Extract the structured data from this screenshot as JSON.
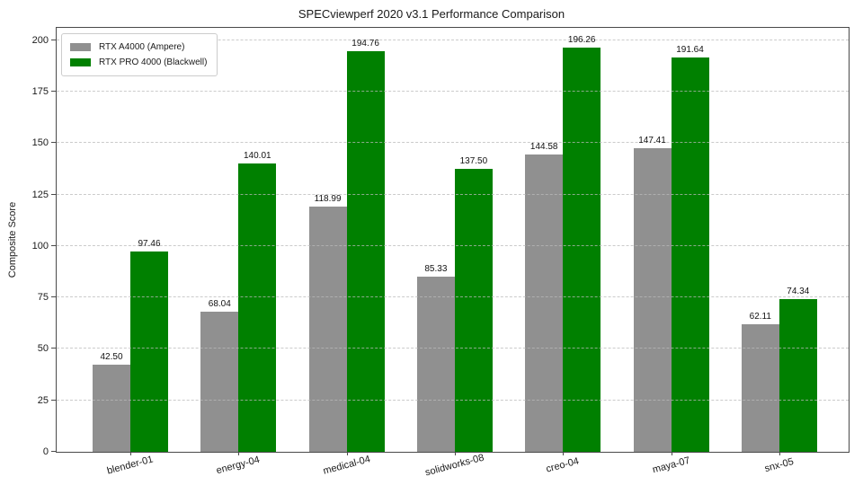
{
  "chart_data": {
    "type": "bar",
    "title": "SPECviewperf 2020 v3.1 Performance Comparison",
    "xlabel": "",
    "ylabel": "Composite Score",
    "categories": [
      "blender-01",
      "energy-04",
      "medical-04",
      "solidworks-08",
      "creo-04",
      "maya-07",
      "snx-05"
    ],
    "series": [
      {
        "name": "RTX A4000 (Ampere)",
        "color": "#909090",
        "values": [
          42.5,
          68.04,
          118.99,
          85.33,
          144.58,
          147.41,
          62.11
        ]
      },
      {
        "name": "RTX PRO 4000 (Blackwell)",
        "color": "#008000",
        "values": [
          97.46,
          140.01,
          194.76,
          137.5,
          196.26,
          191.64,
          74.34
        ]
      }
    ],
    "ylim": [
      0,
      206
    ],
    "yticks": [
      0,
      25,
      50,
      75,
      100,
      125,
      150,
      175,
      200
    ],
    "grid": true,
    "grid_style": "dashed",
    "grid_above_bars": true,
    "legend_position": "upper left",
    "value_labels": true,
    "value_label_decimals": 2,
    "xtick_rotation_deg": 15
  }
}
